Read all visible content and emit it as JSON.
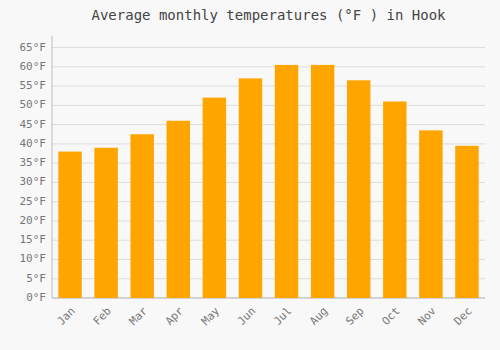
{
  "chart_data": {
    "type": "bar",
    "title": "Average monthly temperatures (°F ) in Hook",
    "categories": [
      "Jan",
      "Feb",
      "Mar",
      "Apr",
      "May",
      "Jun",
      "Jul",
      "Aug",
      "Sep",
      "Oct",
      "Nov",
      "Dec"
    ],
    "values": [
      38,
      39,
      42.5,
      46,
      52,
      57,
      60.5,
      60.5,
      56.5,
      51,
      43.5,
      39.5
    ],
    "color": "#FFA500",
    "ylim": [
      0,
      68
    ],
    "yticks": [
      {
        "value": 0,
        "label": "0°F"
      },
      {
        "value": 5,
        "label": "5°F"
      },
      {
        "value": 10,
        "label": "10°F"
      },
      {
        "value": 15,
        "label": "15°F"
      },
      {
        "value": 20,
        "label": "20°F"
      },
      {
        "value": 25,
        "label": "25°F"
      },
      {
        "value": 30,
        "label": "30°F"
      },
      {
        "value": 35,
        "label": "35°F"
      },
      {
        "value": 40,
        "label": "40°F"
      },
      {
        "value": 45,
        "label": "45°F"
      },
      {
        "value": 50,
        "label": "50°F"
      },
      {
        "value": 55,
        "label": "55°F"
      },
      {
        "value": 60,
        "label": "60°F"
      },
      {
        "value": 65,
        "label": "65°F"
      }
    ],
    "grid": true
  }
}
